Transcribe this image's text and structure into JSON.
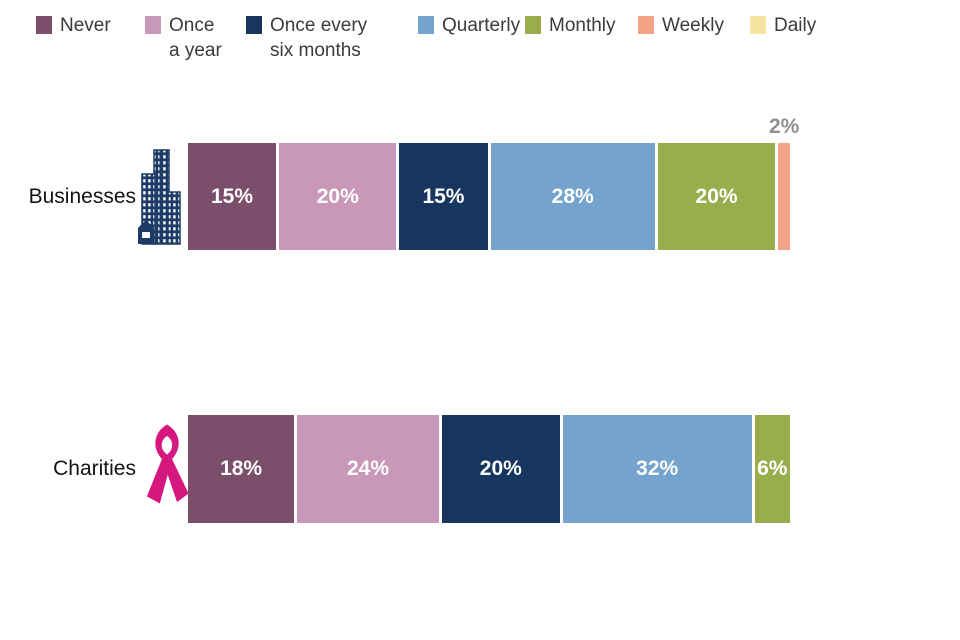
{
  "chart_data": {
    "type": "bar",
    "orientation": "horizontal-stacked",
    "unit": "%",
    "title": "",
    "xlim": [
      0,
      100
    ],
    "grid": false,
    "legend_position": "top",
    "inside_label_color": "#ffffff",
    "above_label_color": "#8f8f8f",
    "separator_color": "#ffffff",
    "colors": {
      "Never": "#7b4e6b",
      "Once a year": "#c997b8",
      "Once every six months": "#16365f",
      "Quarterly": "#74a3cd",
      "Monthly": "#99ad4d",
      "Weekly": "#f2a285",
      "Daily": "#f5e5a3"
    },
    "legend": [
      {
        "label_lines": [
          "Never"
        ],
        "color": "#7b4e6b"
      },
      {
        "label_lines": [
          "Once",
          "a year"
        ],
        "color": "#c997b8"
      },
      {
        "label_lines": [
          "Once every",
          "six months"
        ],
        "color": "#16365f"
      },
      {
        "label_lines": [
          "Quarterly"
        ],
        "color": "#74a3cd"
      },
      {
        "label_lines": [
          "Monthly"
        ],
        "color": "#99ad4d"
      },
      {
        "label_lines": [
          "Weekly"
        ],
        "color": "#f2a285"
      },
      {
        "label_lines": [
          "Daily"
        ],
        "color": "#f5e5a3"
      }
    ],
    "categories": [
      "Never",
      "Once a year",
      "Once every six months",
      "Quarterly",
      "Monthly",
      "Weekly",
      "Daily"
    ],
    "series": [
      {
        "name": "Businesses",
        "icon": "buildings-icon",
        "segments": [
          {
            "category": "Never",
            "value": 15,
            "label": "15%",
            "label_position": "inside"
          },
          {
            "category": "Once a year",
            "value": 20,
            "label": "20%",
            "label_position": "inside"
          },
          {
            "category": "Once every six months",
            "value": 15,
            "label": "15%",
            "label_position": "inside"
          },
          {
            "category": "Quarterly",
            "value": 28,
            "label": "28%",
            "label_position": "inside"
          },
          {
            "category": "Monthly",
            "value": 20,
            "label": "20%",
            "label_position": "inside"
          },
          {
            "category": "Weekly",
            "value": 2,
            "label": "2%",
            "label_position": "above"
          }
        ]
      },
      {
        "name": "Charities",
        "icon": "awareness-ribbon-icon",
        "segments": [
          {
            "category": "Never",
            "value": 18,
            "label": "18%",
            "label_position": "inside"
          },
          {
            "category": "Once a year",
            "value": 24,
            "label": "24%",
            "label_position": "inside"
          },
          {
            "category": "Once every six months",
            "value": 20,
            "label": "20%",
            "label_position": "inside"
          },
          {
            "category": "Quarterly",
            "value": 32,
            "label": "32%",
            "label_position": "inside"
          },
          {
            "category": "Monthly",
            "value": 6,
            "label": "6%",
            "label_position": "inside"
          }
        ]
      }
    ]
  }
}
